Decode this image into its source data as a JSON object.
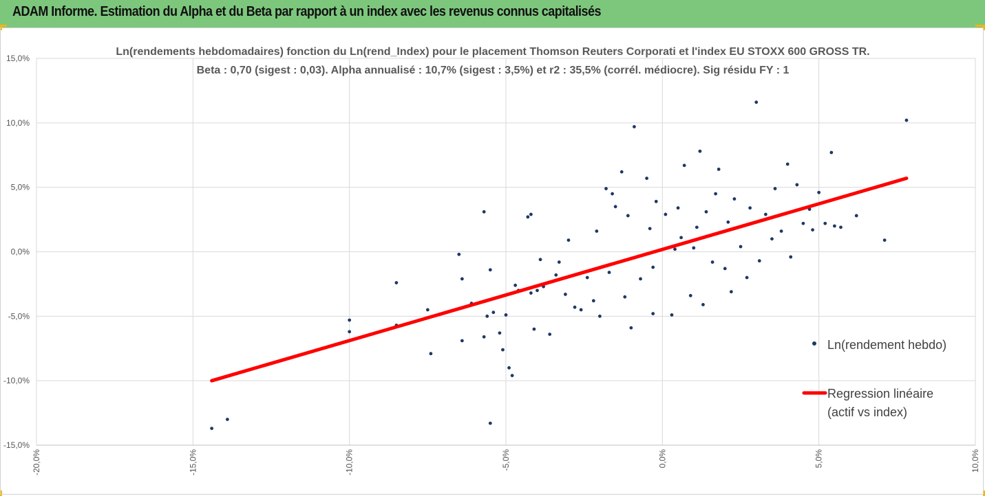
{
  "header": {
    "title": "ADAM Informe. Estimation du Alpha et du Beta par rapport à un index avec les revenus connus capitalisés"
  },
  "colors": {
    "header_bg": "#7dc77d",
    "accent_corner": "#f2b705",
    "points": "#1f3864",
    "regression": "#ff0000",
    "grid": "#d9d9d9"
  },
  "chart_data": {
    "type": "scatter",
    "title_line1": "Ln(rendements hebdomadaires) fonction du Ln(rend_Index) pour le placement Thomson Reuters Corporati et l'index EU STOXX 600 GROSS TR.",
    "title_line2": "Beta : 0,70 (sigest : 0,03).  Alpha annualisé : 10,7% (sigest : 3,5%) et r2 : 35,5% (corrél. médiocre). Sig résidu FY : 1",
    "xlim": [
      -0.2,
      0.1
    ],
    "ylim": [
      -0.15,
      0.15
    ],
    "grid": true,
    "legend_position": "right",
    "x_ticks": [
      "-20,0%",
      "-15,0%",
      "-10,0%",
      "-5,0%",
      "0,0%",
      "5,0%",
      "10,0%"
    ],
    "y_ticks": [
      "15,0%",
      "10,0%",
      "5,0%",
      "0,0%",
      "-5,0%",
      "-10,0%",
      "-15,0%"
    ],
    "series": [
      {
        "name": "Ln(rendement hebdo)",
        "type": "scatter",
        "points": [
          [
            -0.144,
            -0.137
          ],
          [
            -0.139,
            -0.13
          ],
          [
            -0.1,
            -0.053
          ],
          [
            -0.1,
            -0.062
          ],
          [
            -0.085,
            -0.024
          ],
          [
            -0.085,
            -0.057
          ],
          [
            -0.075,
            -0.045
          ],
          [
            -0.074,
            -0.079
          ],
          [
            -0.065,
            -0.002
          ],
          [
            -0.064,
            -0.021
          ],
          [
            -0.064,
            -0.069
          ],
          [
            -0.061,
            -0.04
          ],
          [
            -0.057,
            0.031
          ],
          [
            -0.057,
            -0.066
          ],
          [
            -0.056,
            -0.05
          ],
          [
            -0.055,
            -0.014
          ],
          [
            -0.055,
            -0.133
          ],
          [
            -0.054,
            -0.047
          ],
          [
            -0.052,
            -0.063
          ],
          [
            -0.051,
            -0.076
          ],
          [
            -0.05,
            -0.049
          ],
          [
            -0.049,
            -0.09
          ],
          [
            -0.048,
            -0.096
          ],
          [
            -0.047,
            -0.026
          ],
          [
            -0.046,
            -0.03
          ],
          [
            -0.043,
            0.027
          ],
          [
            -0.042,
            0.029
          ],
          [
            -0.042,
            -0.032
          ],
          [
            -0.041,
            -0.06
          ],
          [
            -0.04,
            -0.03
          ],
          [
            -0.039,
            -0.006
          ],
          [
            -0.038,
            -0.027
          ],
          [
            -0.036,
            -0.064
          ],
          [
            -0.034,
            -0.018
          ],
          [
            -0.033,
            -0.008
          ],
          [
            -0.031,
            -0.033
          ],
          [
            -0.03,
            0.009
          ],
          [
            -0.028,
            -0.043
          ],
          [
            -0.026,
            -0.045
          ],
          [
            -0.024,
            -0.02
          ],
          [
            -0.022,
            -0.038
          ],
          [
            -0.021,
            0.016
          ],
          [
            -0.02,
            -0.05
          ],
          [
            -0.018,
            0.049
          ],
          [
            -0.017,
            -0.016
          ],
          [
            -0.016,
            0.045
          ],
          [
            -0.015,
            0.035
          ],
          [
            -0.013,
            0.062
          ],
          [
            -0.012,
            -0.035
          ],
          [
            -0.011,
            0.028
          ],
          [
            -0.01,
            -0.059
          ],
          [
            -0.009,
            0.097
          ],
          [
            -0.007,
            -0.021
          ],
          [
            -0.005,
            0.057
          ],
          [
            -0.004,
            0.018
          ],
          [
            -0.003,
            -0.048
          ],
          [
            -0.002,
            0.039
          ],
          [
            0.001,
            0.029
          ],
          [
            0.003,
            -0.049
          ],
          [
            0.005,
            0.034
          ],
          [
            0.007,
            0.067
          ],
          [
            0.009,
            -0.034
          ],
          [
            0.011,
            0.019
          ],
          [
            0.012,
            0.078
          ],
          [
            0.013,
            -0.041
          ],
          [
            0.014,
            0.031
          ],
          [
            0.016,
            -0.008
          ],
          [
            0.017,
            0.045
          ],
          [
            0.018,
            0.064
          ],
          [
            0.02,
            -0.013
          ],
          [
            0.021,
            0.023
          ],
          [
            0.022,
            -0.031
          ],
          [
            0.023,
            0.041
          ],
          [
            0.025,
            0.004
          ],
          [
            0.027,
            -0.02
          ],
          [
            0.028,
            0.034
          ],
          [
            0.03,
            0.116
          ],
          [
            0.031,
            -0.007
          ],
          [
            0.033,
            0.029
          ],
          [
            0.035,
            0.01
          ],
          [
            0.036,
            0.049
          ],
          [
            0.038,
            0.016
          ],
          [
            0.04,
            0.068
          ],
          [
            0.041,
            -0.004
          ],
          [
            0.043,
            0.052
          ],
          [
            0.045,
            0.022
          ],
          [
            0.047,
            0.033
          ],
          [
            0.048,
            0.017
          ],
          [
            0.05,
            0.046
          ],
          [
            0.052,
            0.022
          ],
          [
            0.054,
            0.077
          ],
          [
            0.055,
            0.02
          ],
          [
            0.057,
            0.019
          ],
          [
            0.062,
            0.028
          ],
          [
            0.071,
            0.009
          ],
          [
            0.078,
            0.102
          ],
          [
            0.004,
            0.002
          ],
          [
            -0.003,
            -0.012
          ],
          [
            0.006,
            0.011
          ],
          [
            0.01,
            0.003
          ]
        ]
      },
      {
        "name": "Regression linéaire\n(actif vs index)",
        "type": "line",
        "points": [
          [
            -0.144,
            -0.1
          ],
          [
            0.078,
            0.057
          ]
        ]
      }
    ]
  }
}
